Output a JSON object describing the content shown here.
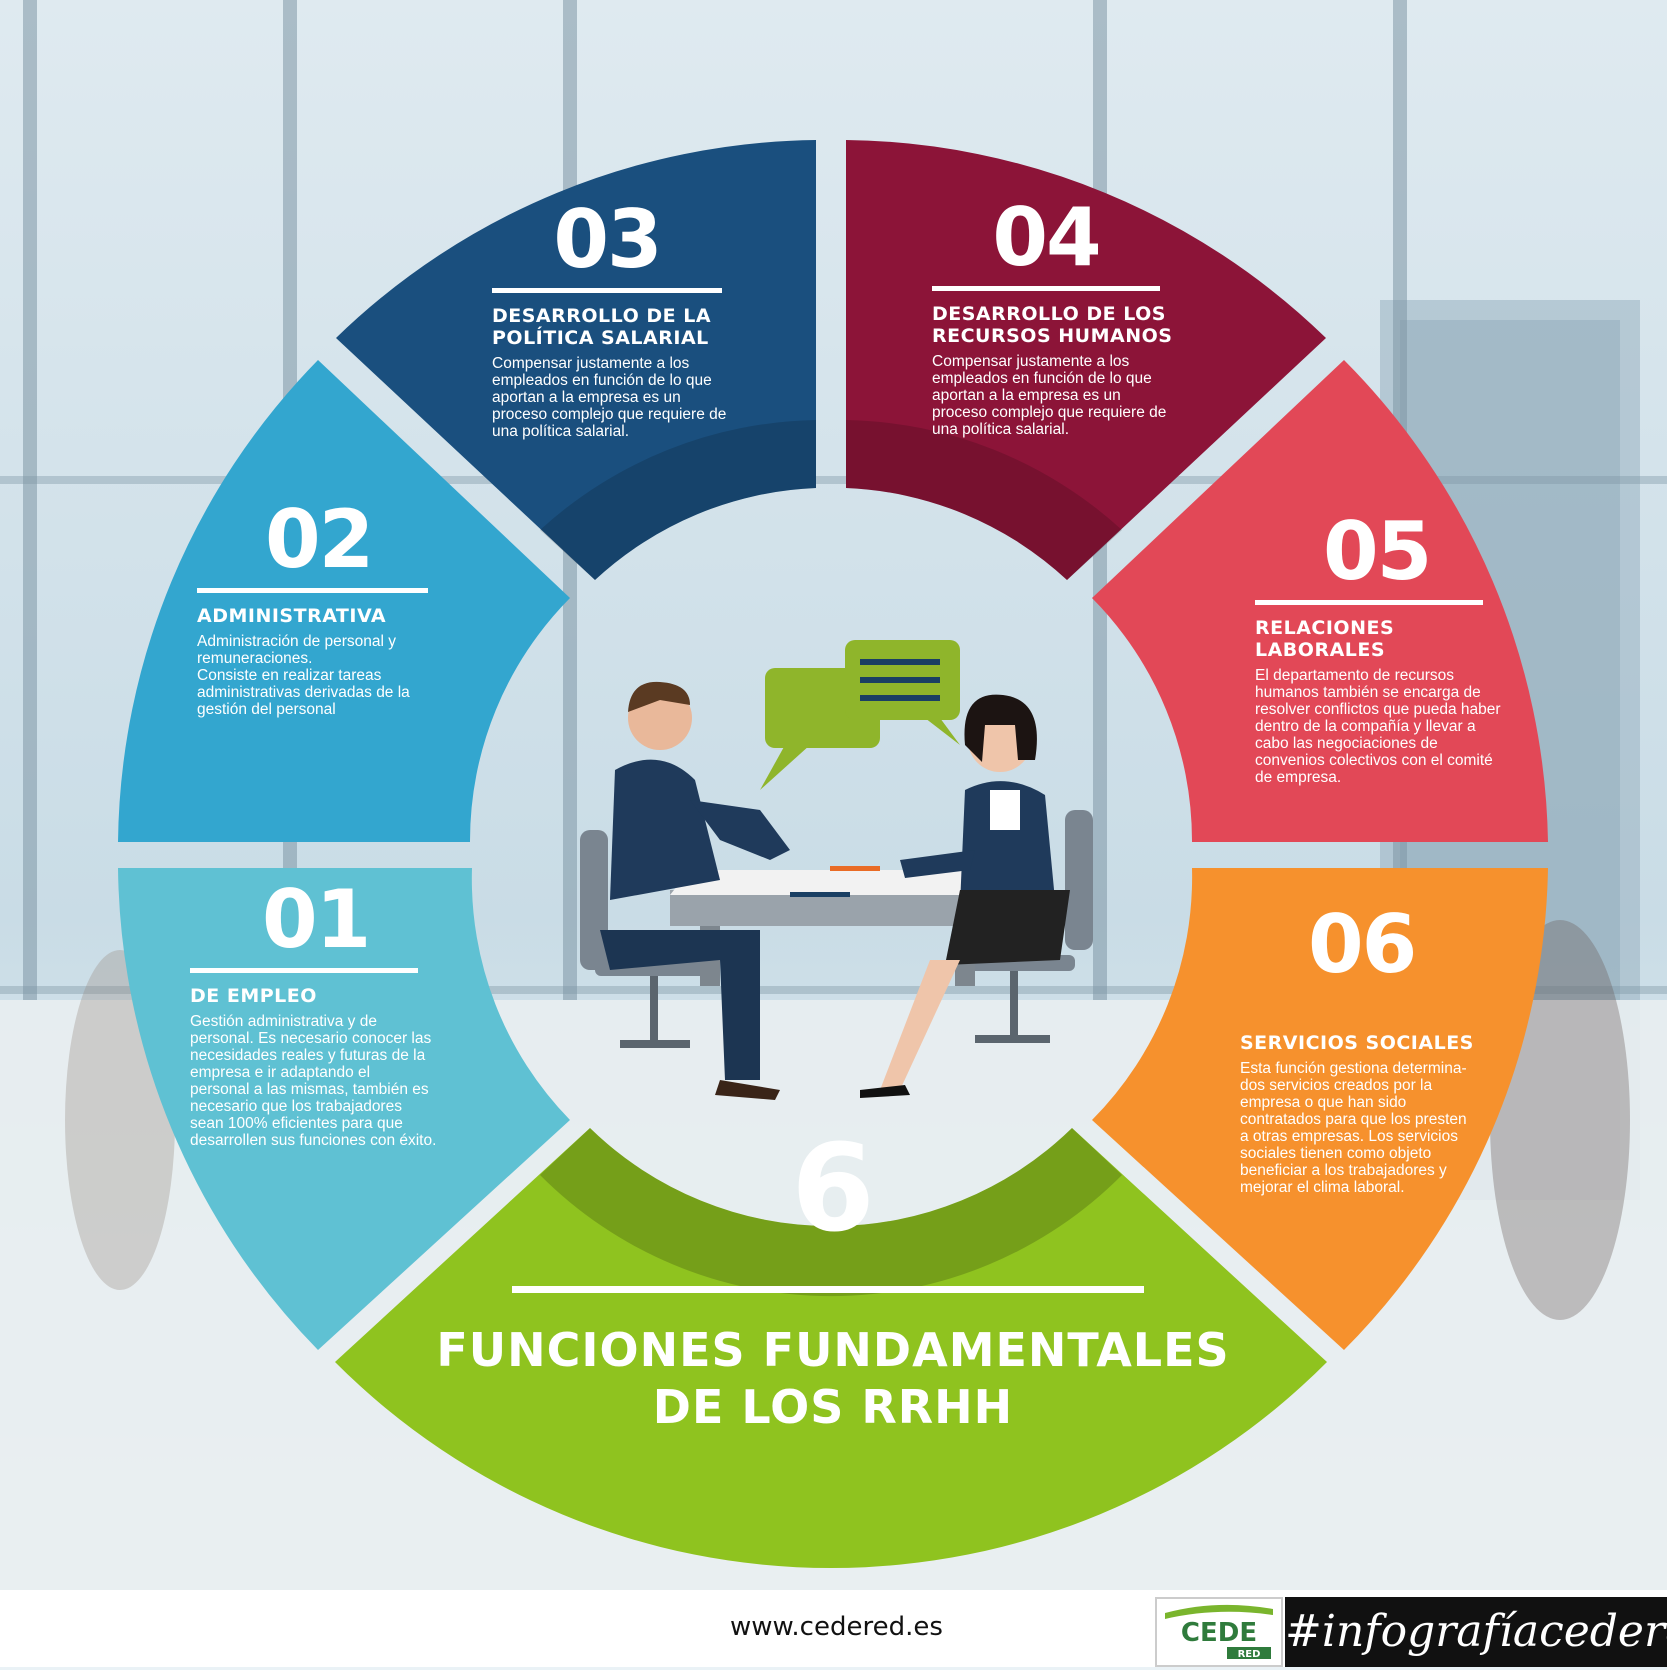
{
  "colors": {
    "seg01": "#5fc1d3",
    "seg02": "#33a6cf",
    "seg03": "#1a4f7e",
    "seg04": "#8c1438",
    "seg05": "#e24857",
    "seg06": "#f6912d",
    "center": "#8fc31f"
  },
  "segments": [
    {
      "number": "01",
      "title_lines": [
        "DE EMPLEO"
      ],
      "desc_lines": [
        "Gestión administrativa y de",
        "personal. Es necesario conocer las",
        "necesidades reales y futuras de la",
        "empresa e ir adaptando el",
        "personal a las mismas, también es",
        "necesario que los trabajadores",
        "sean 100% eficientes para que",
        "desarrollen sus funciones con éxito."
      ]
    },
    {
      "number": "02",
      "title_lines": [
        "ADMINISTRATIVA"
      ],
      "desc_lines": [
        "Administración de personal y",
        "remuneraciones.",
        "Consiste en realizar tareas",
        "administrativas derivadas de la",
        "gestión del personal"
      ]
    },
    {
      "number": "03",
      "title_lines": [
        "DESARROLLO DE LA",
        "POLÍTICA SALARIAL"
      ],
      "desc_lines": [
        "Compensar justamente a los",
        "empleados en función de lo que",
        "aportan a la empresa es un",
        "proceso complejo que requiere de",
        "una política salarial."
      ]
    },
    {
      "number": "04",
      "title_lines": [
        "DESARROLLO DE LOS",
        "RECURSOS HUMANOS"
      ],
      "desc_lines": [
        "Compensar justamente a los",
        "empleados en función de lo que",
        "aportan a la empresa es un",
        "proceso complejo que requiere de",
        "una política salarial."
      ]
    },
    {
      "number": "05",
      "title_lines": [
        "RELACIONES",
        "LABORALES"
      ],
      "desc_lines": [
        "El departamento de recursos",
        "humanos también se encarga de",
        "resolver conflictos que pueda haber",
        "dentro de la compañía y llevar a",
        "cabo las negociaciones de",
        "convenios colectivos con el comité",
        "de empresa."
      ]
    },
    {
      "number": "06",
      "title_lines": [
        "SERVICIOS SOCIALES"
      ],
      "desc_lines": [
        "Esta función gestiona determina-",
        "dos servicios creados por la",
        "empresa o que han sido",
        "contratados para que los presten",
        "a otras empresas. Los servicios",
        "sociales tienen como objeto",
        "beneficiar a los trabajadores y",
        "mejorar el clima laboral."
      ]
    }
  ],
  "center": {
    "number": "6",
    "title_line1": "FUNCIONES FUNDAMENTALES",
    "title_line2": "DE LOS RRHH"
  },
  "footer": {
    "url": "www.cedered.es",
    "logo_text": "CEDE",
    "logo_sub": "RED",
    "hashtag": "#infografíacedered"
  }
}
